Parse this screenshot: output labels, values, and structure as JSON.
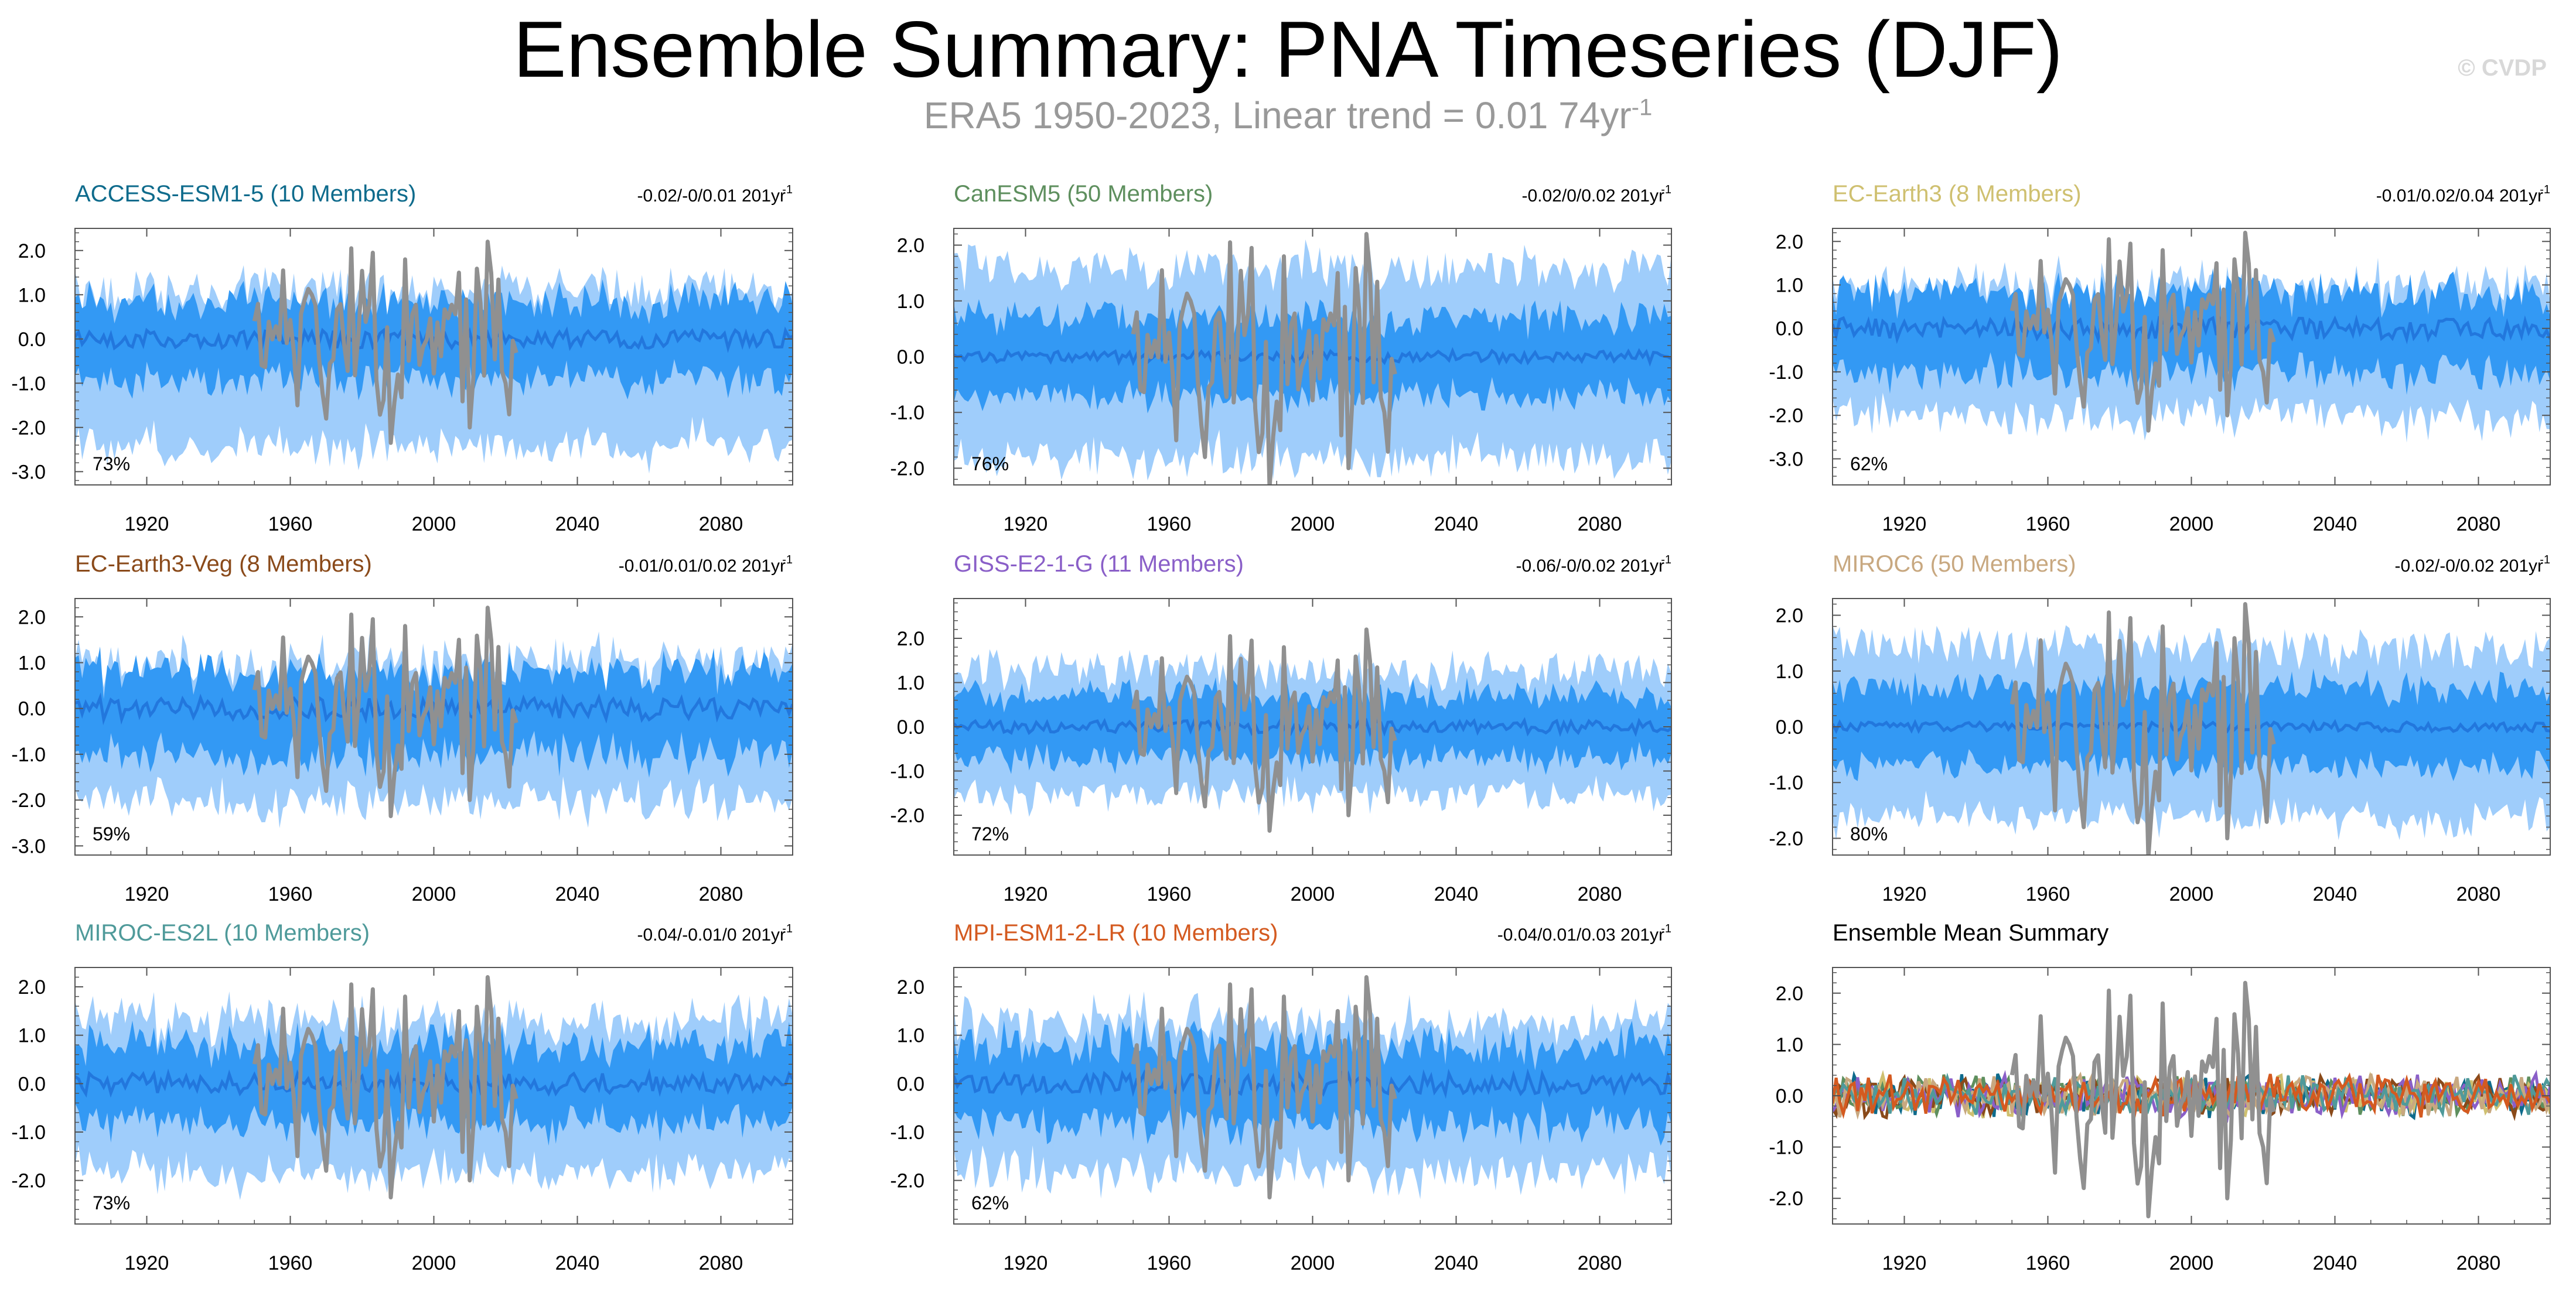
{
  "title": "Ensemble Summary: PNA Timeseries (DJF)",
  "subtitle": {
    "text": "ERA5 1950-2023, Linear trend = 0.01 74yr",
    "sup": "-1"
  },
  "watermark": "© CVDP",
  "colors": {
    "outer_band": "#9fcdfb",
    "inner_band": "#3399f4",
    "ens_mean": "#2277dd",
    "obs": "#909090",
    "axis": "#555555"
  },
  "chart_data": [
    {
      "type": "area",
      "title": "ACCESS-ESM1-5 (10 Members)",
      "title_color": "#0e6b8c",
      "trend": "-0.02/-0/0.01 201yr",
      "trend_sup": "-1",
      "pct": "73%",
      "xlim": [
        1900,
        2100
      ],
      "ylim": [
        -3.3,
        2.5
      ],
      "yticks": [
        2.0,
        1.0,
        0.0,
        -1.0,
        -2.0,
        -3.0
      ],
      "ytick_labels": [
        "2.0",
        "1.0",
        "0.0",
        "-1.0",
        "-2.0",
        "-3.0"
      ],
      "xticks": [
        1920,
        1960,
        2000,
        2040,
        2080
      ],
      "xtick_labels": [
        "1920",
        "1960",
        "2000",
        "2040",
        "2080"
      ],
      "band_outer": [
        -2.2,
        1.1
      ],
      "band_inner": [
        -0.9,
        0.85
      ],
      "mean_amp": 0.3
    },
    {
      "type": "area",
      "title": "CanESM5 (50 Members)",
      "title_color": "#5e8f5e",
      "trend": "-0.02/0/0.02 201yr",
      "trend_sup": "-1",
      "pct": "76%",
      "xlim": [
        1900,
        2100
      ],
      "ylim": [
        -2.3,
        2.3
      ],
      "yticks": [
        2.0,
        1.0,
        0.0,
        -1.0,
        -2.0
      ],
      "ytick_labels": [
        "2.0",
        "1.0",
        "0.0",
        "-1.0",
        "-2.0"
      ],
      "xticks": [
        1920,
        1960,
        2000,
        2040,
        2080
      ],
      "xtick_labels": [
        "1920",
        "1960",
        "2000",
        "2040",
        "2080"
      ],
      "band_outer": [
        -1.6,
        1.6
      ],
      "band_inner": [
        -0.7,
        0.7
      ],
      "mean_amp": 0.15
    },
    {
      "type": "area",
      "title": "EC-Earth3 (8 Members)",
      "title_color": "#cfc070",
      "trend": "-0.01/0.02/0.04 201yr",
      "trend_sup": "-1",
      "pct": "62%",
      "xlim": [
        1900,
        2100
      ],
      "ylim": [
        -3.6,
        2.3
      ],
      "yticks": [
        2.0,
        1.0,
        0.0,
        -1.0,
        -2.0,
        -3.0
      ],
      "ytick_labels": [
        "2.0",
        "1.0",
        "0.0",
        "-1.0",
        "-2.0",
        "-3.0"
      ],
      "xticks": [
        1920,
        1960,
        2000,
        2040,
        2080
      ],
      "xtick_labels": [
        "1920",
        "1960",
        "2000",
        "2040",
        "2080"
      ],
      "band_outer": [
        -1.8,
        1.0
      ],
      "band_inner": [
        -1.0,
        0.8
      ],
      "mean_amp": 0.35
    },
    {
      "type": "area",
      "title": "EC-Earth3-Veg (8 Members)",
      "title_color": "#8a4a1a",
      "trend": "-0.01/0.01/0.02 201yr",
      "trend_sup": "-1",
      "pct": "59%",
      "xlim": [
        1900,
        2100
      ],
      "ylim": [
        -3.2,
        2.4
      ],
      "yticks": [
        2.0,
        1.0,
        0.0,
        -1.0,
        -2.0,
        -3.0
      ],
      "ytick_labels": [
        "2.0",
        "1.0",
        "0.0",
        "-1.0",
        "-2.0",
        "-3.0"
      ],
      "xticks": [
        1920,
        1960,
        2000,
        2040,
        2080
      ],
      "xtick_labels": [
        "1920",
        "1960",
        "2000",
        "2040",
        "2080"
      ],
      "band_outer": [
        -1.8,
        1.0
      ],
      "band_inner": [
        -1.0,
        0.8
      ],
      "mean_amp": 0.35
    },
    {
      "type": "area",
      "title": "GISS-E2-1-G (11 Members)",
      "title_color": "#8a5fc8",
      "trend": "-0.06/-0/0.02 201yr",
      "trend_sup": "-1",
      "pct": "72%",
      "xlim": [
        1900,
        2100
      ],
      "ylim": [
        -2.9,
        2.9
      ],
      "yticks": [
        2.0,
        1.0,
        0.0,
        -1.0,
        -2.0
      ],
      "ytick_labels": [
        "2.0",
        "1.0",
        "0.0",
        "-1.0",
        "-2.0"
      ],
      "xticks": [
        1920,
        1960,
        2000,
        2040,
        2080
      ],
      "xtick_labels": [
        "1920",
        "1960",
        "2000",
        "2040",
        "2080"
      ],
      "band_outer": [
        -1.3,
        1.3
      ],
      "band_inner": [
        -0.7,
        0.7
      ],
      "mean_amp": 0.2
    },
    {
      "type": "area",
      "title": "MIROC6 (50 Members)",
      "title_color": "#c8a880",
      "trend": "-0.02/-0/0.02 201yr",
      "trend_sup": "-1",
      "pct": "80%",
      "xlim": [
        1900,
        2100
      ],
      "ylim": [
        -2.3,
        2.3
      ],
      "yticks": [
        2.0,
        1.0,
        0.0,
        -1.0,
        -2.0
      ],
      "ytick_labels": [
        "2.0",
        "1.0",
        "0.0",
        "-1.0",
        "-2.0"
      ],
      "xticks": [
        1920,
        1960,
        2000,
        2040,
        2080
      ],
      "xtick_labels": [
        "1920",
        "1960",
        "2000",
        "2040",
        "2080"
      ],
      "band_outer": [
        -1.4,
        1.4
      ],
      "band_inner": [
        -0.7,
        0.7
      ],
      "mean_amp": 0.12
    },
    {
      "type": "area",
      "title": "MIROC-ES2L (10 Members)",
      "title_color": "#4f9a9a",
      "trend": "-0.04/-0.01/0 201yr",
      "trend_sup": "-1",
      "pct": "73%",
      "xlim": [
        1900,
        2100
      ],
      "ylim": [
        -2.9,
        2.4
      ],
      "yticks": [
        2.0,
        1.0,
        0.0,
        -1.0,
        -2.0
      ],
      "ytick_labels": [
        "2.0",
        "1.0",
        "0.0",
        "-1.0",
        "-2.0"
      ],
      "xticks": [
        1920,
        1960,
        2000,
        2040,
        2080
      ],
      "xtick_labels": [
        "1920",
        "1960",
        "2000",
        "2040",
        "2080"
      ],
      "band_outer": [
        -1.6,
        1.3
      ],
      "band_inner": [
        -0.8,
        0.8
      ],
      "mean_amp": 0.3
    },
    {
      "type": "area",
      "title": "MPI-ESM1-2-LR (10 Members)",
      "title_color": "#d45a20",
      "trend": "-0.04/0.01/0.03 201yr",
      "trend_sup": "-1",
      "pct": "62%",
      "xlim": [
        1900,
        2100
      ],
      "ylim": [
        -2.9,
        2.4
      ],
      "yticks": [
        2.0,
        1.0,
        0.0,
        -1.0,
        -2.0
      ],
      "ytick_labels": [
        "2.0",
        "1.0",
        "0.0",
        "-1.0",
        "-2.0"
      ],
      "xticks": [
        1920,
        1960,
        2000,
        2040,
        2080
      ],
      "xtick_labels": [
        "1920",
        "1960",
        "2000",
        "2040",
        "2080"
      ],
      "band_outer": [
        -1.6,
        1.3
      ],
      "band_inner": [
        -0.8,
        0.8
      ],
      "mean_amp": 0.3
    },
    {
      "type": "line",
      "title": "Ensemble Mean Summary",
      "title_color": "#000000",
      "trend": "",
      "trend_sup": "",
      "pct": "",
      "xlim": [
        1900,
        2100
      ],
      "ylim": [
        -2.5,
        2.5
      ],
      "yticks": [
        2.0,
        1.0,
        0.0,
        -1.0,
        -2.0
      ],
      "ytick_labels": [
        "2.0",
        "1.0",
        "0.0",
        "-1.0",
        "-2.0"
      ],
      "xticks": [
        1920,
        1960,
        2000,
        2040,
        2080
      ],
      "xtick_labels": [
        "1920",
        "1960",
        "2000",
        "2040",
        "2080"
      ],
      "series_colors": [
        "#0e6b8c",
        "#5e8f5e",
        "#cfc070",
        "#8a4a1a",
        "#8a5fc8",
        "#c8a880",
        "#4f9a9a",
        "#d45a20"
      ],
      "mean_amp": 0.3
    }
  ]
}
